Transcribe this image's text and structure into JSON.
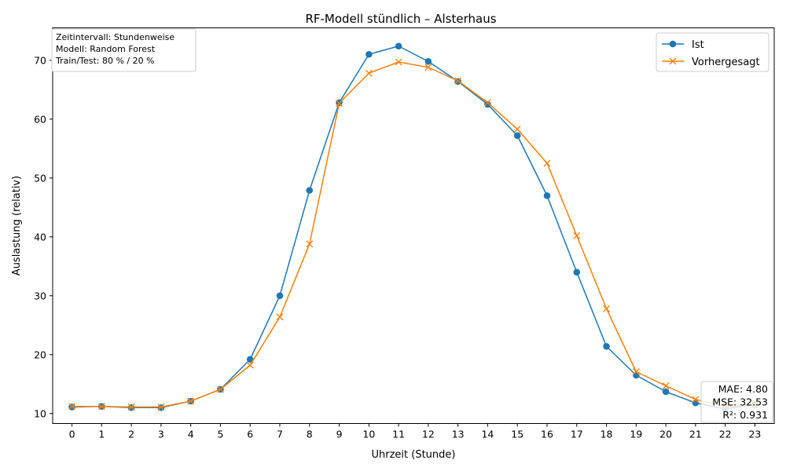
{
  "chart_data": {
    "type": "line",
    "title": "RF-Modell stündlich – Alsterhaus",
    "xlabel": "Uhrzeit (Stunde)",
    "ylabel": "Auslastung (relativ)",
    "x": [
      0,
      1,
      2,
      3,
      4,
      5,
      6,
      7,
      8,
      9,
      10,
      11,
      12,
      13,
      14,
      15,
      16,
      17,
      18,
      19,
      20,
      21,
      22,
      23
    ],
    "xlim": [
      -0.65,
      23.65
    ],
    "ylim": [
      8.3,
      75.5
    ],
    "yticks": [
      10,
      20,
      30,
      40,
      50,
      60,
      70
    ],
    "grid": false,
    "legend_position": "top-right",
    "series": [
      {
        "name": "Ist",
        "color": "#1f77b4",
        "marker": "circle",
        "values": [
          11.1,
          11.2,
          11.0,
          11.0,
          12.1,
          14.1,
          19.2,
          30.0,
          47.9,
          62.8,
          71.0,
          72.4,
          69.8,
          66.4,
          62.5,
          57.2,
          47.0,
          34.0,
          21.4,
          16.5,
          13.7,
          11.8,
          10.8,
          11.5
        ]
      },
      {
        "name": "Vorhergesagt",
        "color": "#ff7f0e",
        "marker": "x",
        "values": [
          11.2,
          11.2,
          11.1,
          11.1,
          12.1,
          14.1,
          18.2,
          26.4,
          38.8,
          62.7,
          67.8,
          69.7,
          68.8,
          66.5,
          62.8,
          58.3,
          52.5,
          40.2,
          27.8,
          17.1,
          14.7,
          12.4,
          11.2,
          11.5
        ]
      }
    ],
    "info_box": [
      "Zeitintervall: Stundenweise",
      "Modell: Random Forest",
      "Train/Test: 80 % / 20 %"
    ],
    "metrics_box": [
      "MAE: 4.80",
      "MSE: 32.53",
      "R²: 0.931"
    ]
  }
}
